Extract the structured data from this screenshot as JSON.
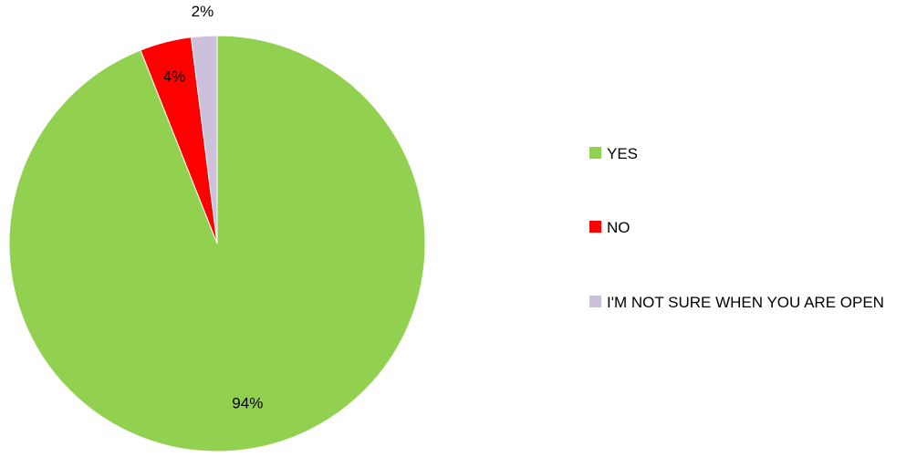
{
  "chart_data": {
    "type": "pie",
    "title": "",
    "slices": [
      {
        "label": "YES",
        "value": 94,
        "display": "94%",
        "color": "#92d050"
      },
      {
        "label": "NO",
        "value": 4,
        "display": "4%",
        "color": "#ff0000"
      },
      {
        "label": "I'M NOT SURE WHEN YOU ARE OPEN",
        "value": 2,
        "display": "2%",
        "color": "#ccc0da"
      }
    ],
    "legend_position": "right"
  }
}
